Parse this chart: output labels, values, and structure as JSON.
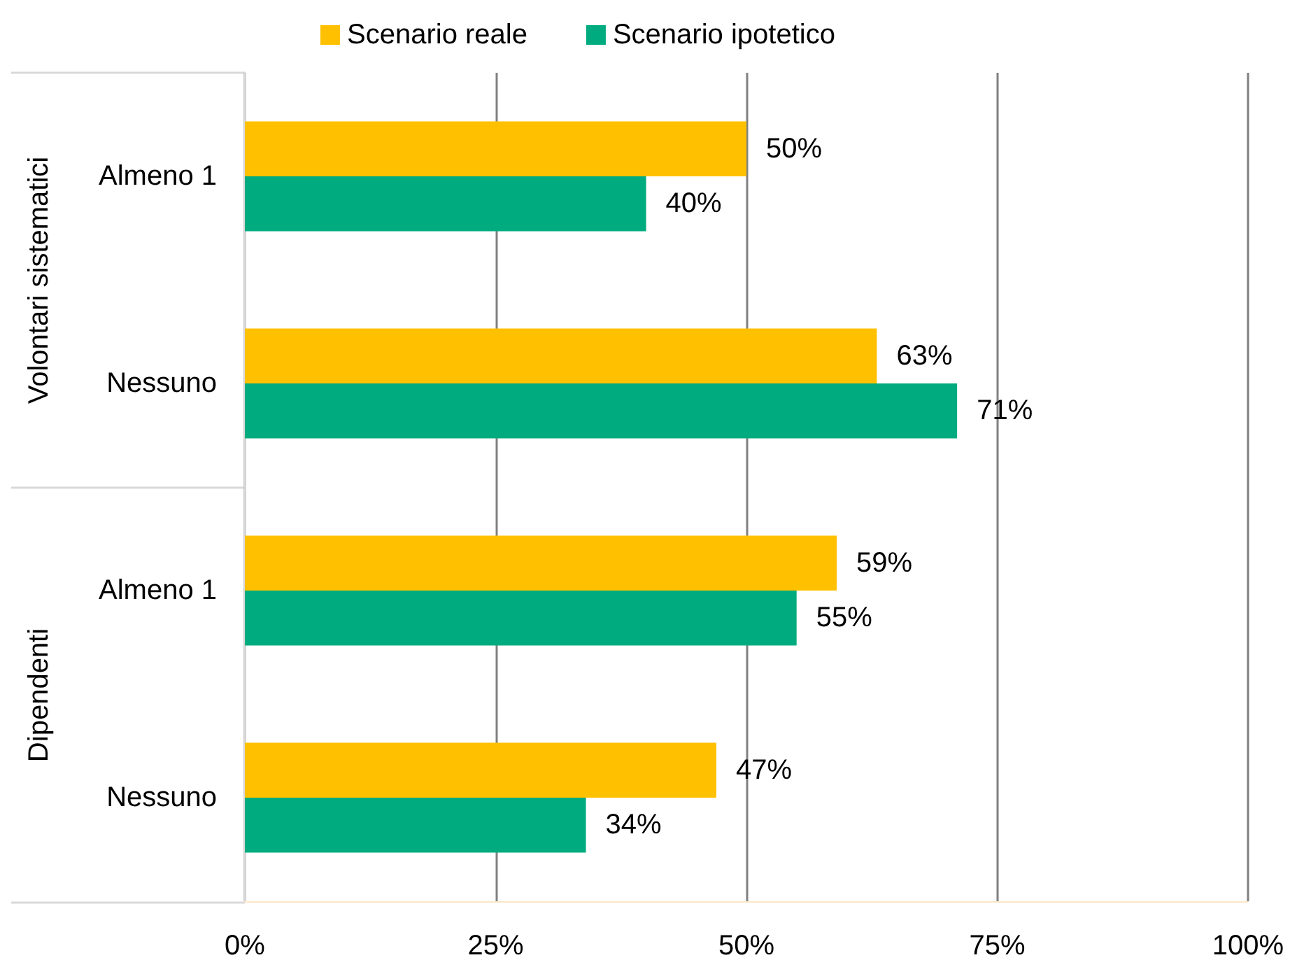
{
  "chart_data": {
    "type": "bar",
    "orientation": "horizontal",
    "categories": [
      "Almeno 1",
      "Nessuno",
      "Almeno 1",
      "Nessuno"
    ],
    "series": [
      {
        "name": "Scenario reale",
        "color": "#ffc000",
        "values": [
          50,
          63,
          59,
          47
        ],
        "value_labels": [
          "50%",
          "63%",
          "59%",
          "47%"
        ]
      },
      {
        "name": "Scenario ipotetico",
        "color": "#00ac7f",
        "values": [
          40,
          71,
          55,
          34
        ],
        "value_labels": [
          "40%",
          "71%",
          "55%",
          "34%"
        ]
      }
    ],
    "xlim": [
      0,
      100
    ],
    "xticks": [
      {
        "value": 0,
        "label": "0%"
      },
      {
        "value": 25,
        "label": "25%"
      },
      {
        "value": 50,
        "label": "50%"
      },
      {
        "value": 75,
        "label": "75%"
      },
      {
        "value": 100,
        "label": "100%"
      }
    ],
    "grid": "x",
    "legend": "top",
    "annotations": [
      "Volontari sistematici",
      "Dipendenti"
    ]
  }
}
